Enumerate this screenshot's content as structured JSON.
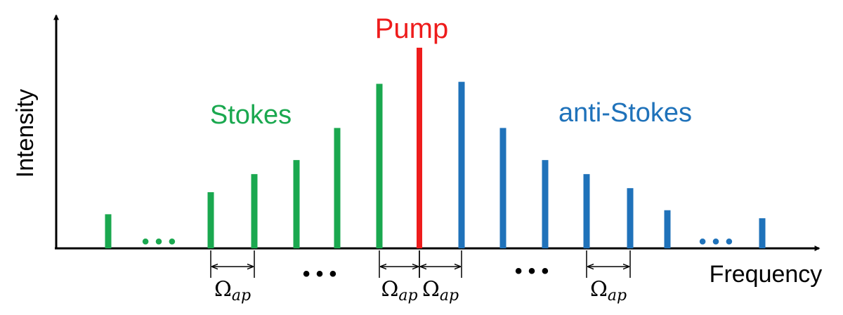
{
  "axes": {
    "ylabel": "Intensity",
    "xlabel": "Frequency"
  },
  "labels": {
    "pump": "Pump",
    "stokes": "Stokes",
    "anti_stokes": "anti-Stokes"
  },
  "colors": {
    "stokes": "#1aa84f",
    "pump": "#ee1c1c",
    "anti_stokes": "#1f72ba",
    "axis": "#000000"
  },
  "spacing": {
    "symbol": "Ω",
    "subscript": "ap"
  },
  "ellipsis": "• • •",
  "chart_data": {
    "type": "bar",
    "series": [
      {
        "name": "Stokes",
        "values": [
          0.17,
          0.28,
          0.37,
          0.44,
          0.6,
          0.82
        ]
      },
      {
        "name": "Pump",
        "values": [
          1.0
        ]
      },
      {
        "name": "anti-Stokes",
        "values": [
          0.83,
          0.6,
          0.44,
          0.37,
          0.3,
          0.19,
          0.15
        ]
      }
    ]
  }
}
